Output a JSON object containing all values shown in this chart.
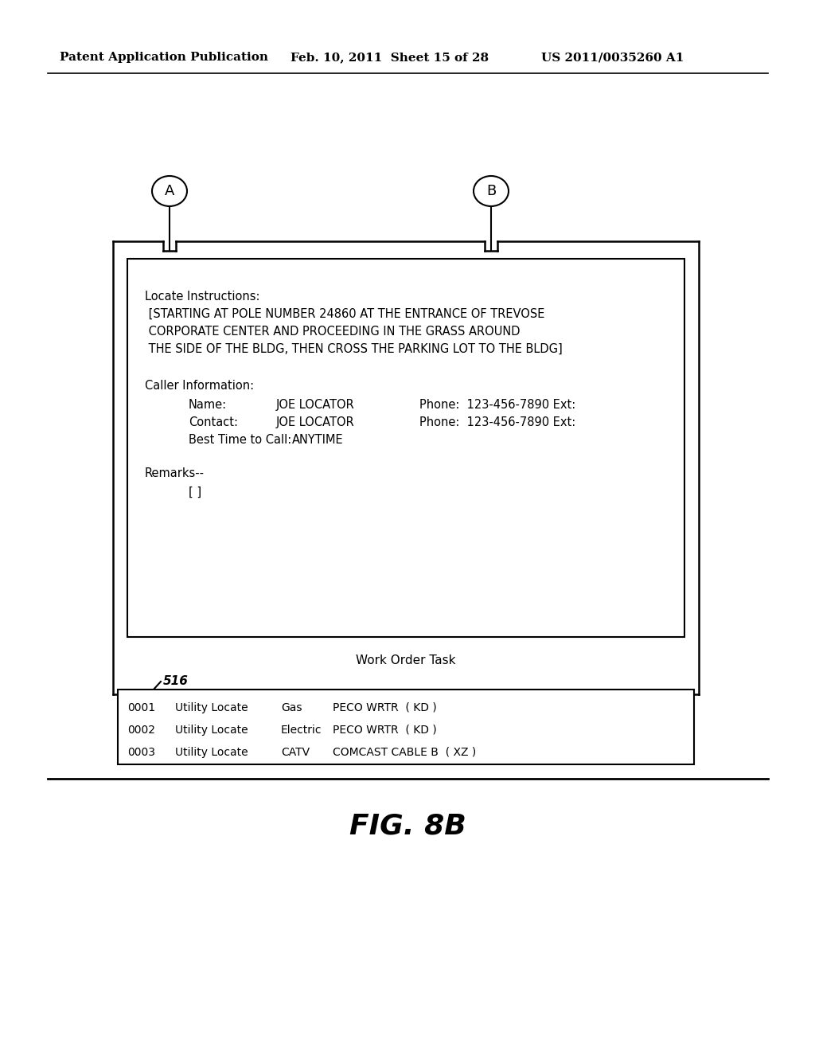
{
  "header_left": "Patent Application Publication",
  "header_mid": "Feb. 10, 2011  Sheet 15 of 28",
  "header_right": "US 2011/0035260 A1",
  "label_A": "A",
  "label_B": "B",
  "locate_instructions_label": "Locate Instructions:",
  "locate_line1": " [STARTING AT POLE NUMBER 24860 AT THE ENTRANCE OF TREVOSE",
  "locate_line2": " CORPORATE CENTER AND PROCEEDING IN THE GRASS AROUND",
  "locate_line3": " THE SIDE OF THE BLDG, THEN CROSS THE PARKING LOT TO THE BLDG]",
  "caller_info_label": "Caller Information:",
  "name_label": "Name:",
  "name_value": "JOE LOCATOR",
  "name_phone": "Phone:  123-456-7890 Ext:",
  "contact_label": "Contact:",
  "contact_value": "JOE LOCATOR",
  "contact_phone": "Phone:  123-456-7890 Ext:",
  "best_time_label": "Best Time to Call:",
  "best_time_value": "ANYTIME",
  "remarks_label": "Remarks--",
  "remarks_value": "[ ]",
  "work_order_label": "Work Order Task",
  "ref_num": "516",
  "table_rows": [
    [
      "0001",
      "Utility Locate",
      "Gas",
      "PECO WRTR  ( KD )"
    ],
    [
      "0002",
      "Utility Locate",
      "Electric",
      "PECO WRTR  ( KD )"
    ],
    [
      "0003",
      "Utility Locate",
      "CATV",
      "COMCAST CABLE B  ( XZ )"
    ]
  ],
  "fig_label": "FIG. 8B",
  "bg_color": "#ffffff",
  "text_color": "#000000"
}
